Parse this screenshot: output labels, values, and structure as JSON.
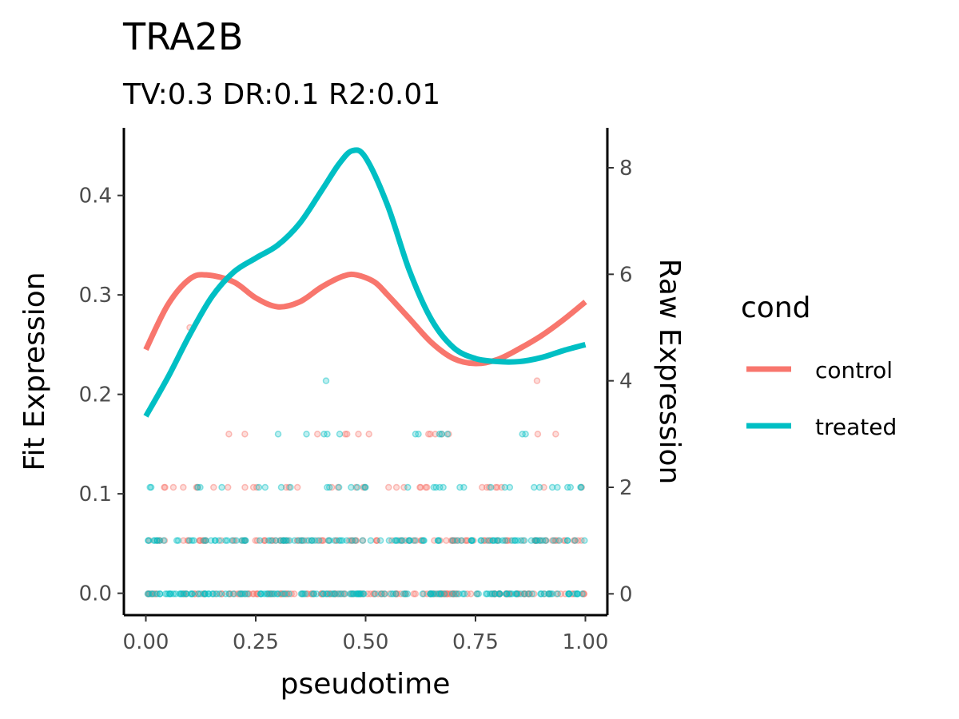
{
  "chart_data": {
    "type": "line",
    "title": "TRA2B",
    "subtitle": "TV:0.3 DR:0.1 R2:0.01",
    "xlabel": "pseudotime",
    "ylabel": "Fit Expression",
    "y2label": "Raw Expression",
    "xlim": [
      -0.05,
      1.05
    ],
    "ylim": [
      -0.022,
      0.468
    ],
    "y2lim": [
      -0.4,
      8.75
    ],
    "x_ticks": [
      "0.00",
      "0.25",
      "0.50",
      "0.75",
      "1.00"
    ],
    "y_ticks": [
      "0.0",
      "0.1",
      "0.2",
      "0.3",
      "0.4"
    ],
    "y2_ticks": [
      "0",
      "2",
      "4",
      "6",
      "8"
    ],
    "legend": {
      "title": "cond",
      "placement": "right"
    },
    "colors": {
      "control": "#F8766D",
      "treated": "#00BFC4"
    },
    "series": [
      {
        "name": "control",
        "x": [
          0.0,
          0.05,
          0.1,
          0.14,
          0.2,
          0.25,
          0.3,
          0.35,
          0.4,
          0.45,
          0.48,
          0.52,
          0.55,
          0.6,
          0.65,
          0.7,
          0.75,
          0.8,
          0.85,
          0.9,
          0.95,
          1.0
        ],
        "y": [
          0.245,
          0.29,
          0.316,
          0.32,
          0.313,
          0.297,
          0.288,
          0.293,
          0.308,
          0.319,
          0.32,
          0.313,
          0.3,
          0.276,
          0.252,
          0.236,
          0.231,
          0.235,
          0.246,
          0.259,
          0.275,
          0.293
        ]
      },
      {
        "name": "treated",
        "x": [
          0.0,
          0.05,
          0.1,
          0.15,
          0.2,
          0.25,
          0.3,
          0.35,
          0.4,
          0.44,
          0.47,
          0.5,
          0.55,
          0.6,
          0.65,
          0.7,
          0.75,
          0.8,
          0.85,
          0.9,
          0.95,
          1.0
        ],
        "y": [
          0.178,
          0.217,
          0.26,
          0.298,
          0.323,
          0.337,
          0.35,
          0.372,
          0.405,
          0.432,
          0.445,
          0.438,
          0.39,
          0.324,
          0.275,
          0.247,
          0.236,
          0.233,
          0.233,
          0.237,
          0.244,
          0.25
        ]
      }
    ],
    "raw_points": {
      "control": {
        "levels": [
          0,
          1,
          2,
          3,
          4,
          5
        ],
        "counts": [
          150,
          110,
          34,
          14,
          1,
          1
        ],
        "ranges": [
          [
            0,
            1
          ],
          [
            0,
            1
          ],
          [
            0,
            1
          ],
          [
            0,
            0.96
          ],
          [
            0.89,
            0.89
          ],
          [
            0.1,
            0.1
          ]
        ]
      },
      "treated": {
        "levels": [
          0,
          1,
          2,
          3,
          4
        ],
        "counts": [
          150,
          110,
          34,
          12,
          1
        ],
        "ranges": [
          [
            0,
            1
          ],
          [
            0,
            1
          ],
          [
            0,
            1
          ],
          [
            0.15,
            0.89
          ],
          [
            0.41,
            0.41
          ]
        ]
      }
    }
  }
}
